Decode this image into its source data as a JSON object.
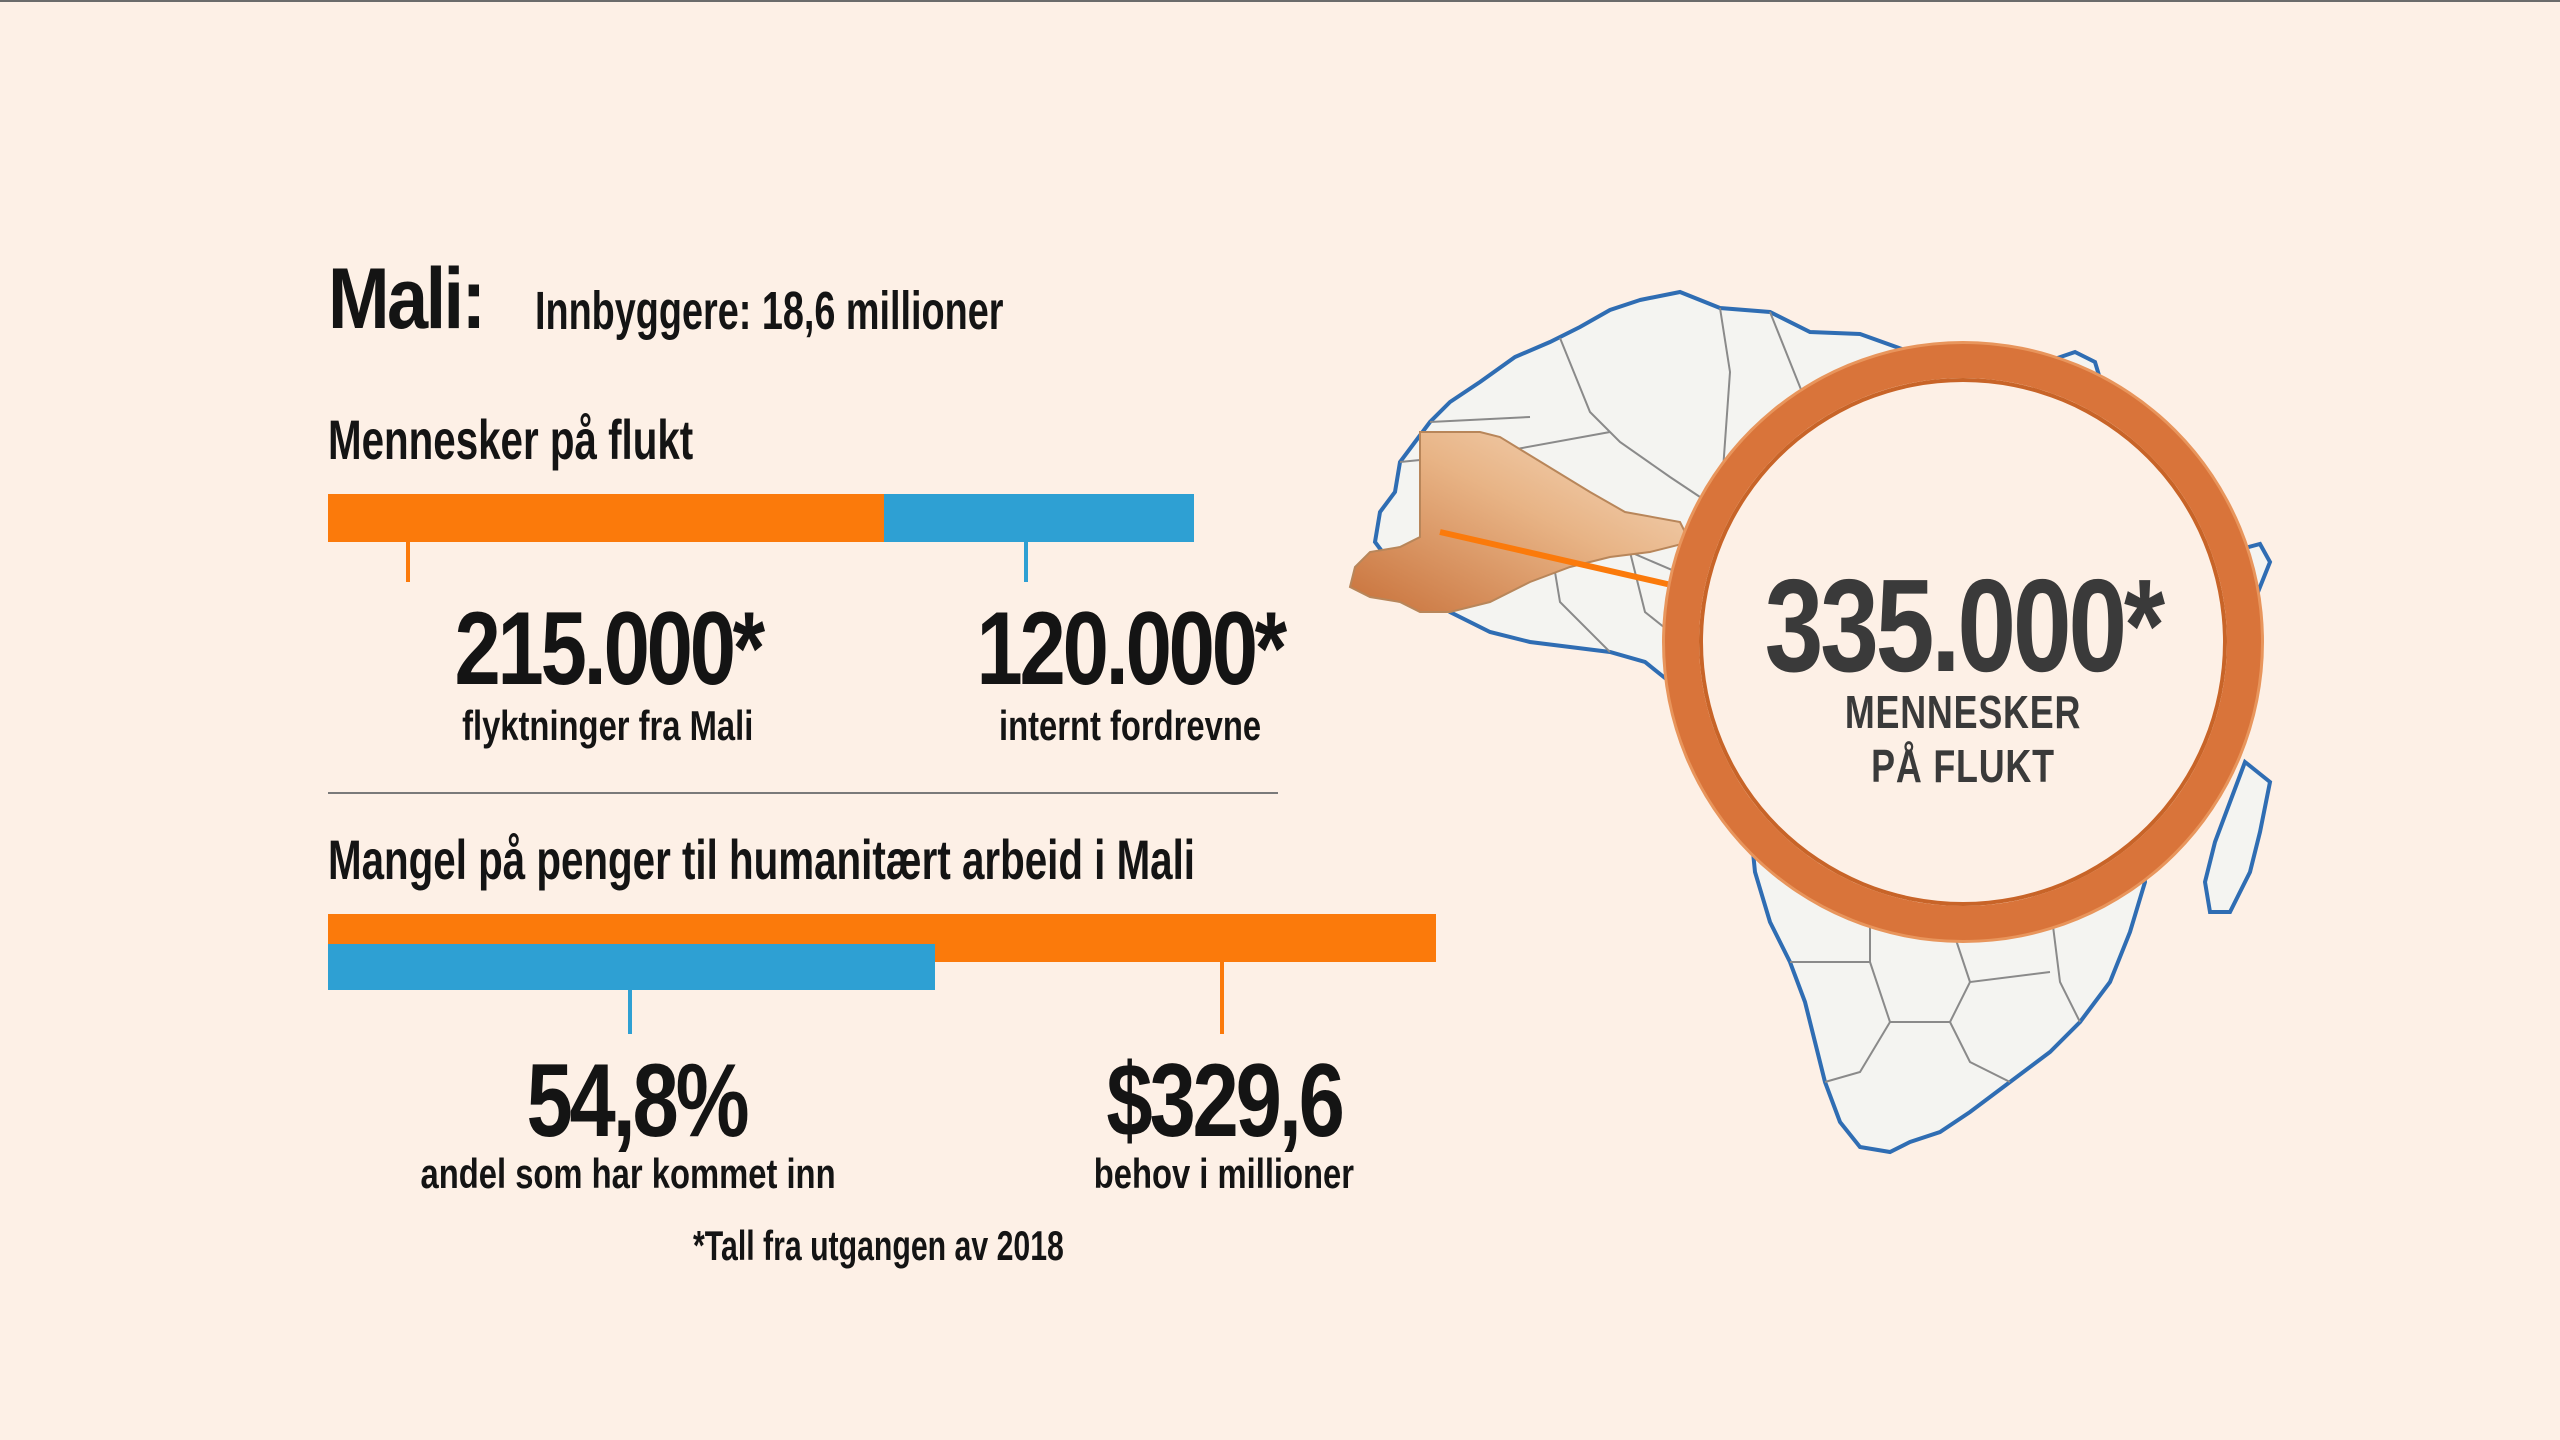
{
  "header": {
    "country": "Mali:",
    "population": "Innbyggere: 18,6 millioner"
  },
  "displacement": {
    "title": "Mennesker på flukt",
    "refugees_value": "215.000*",
    "refugees_label": "flyktninger fra Mali",
    "idp_value": "120.000*",
    "idp_label": "internt fordrevne",
    "refugees_count": 215000,
    "idp_count": 120000
  },
  "funding": {
    "title": "Mangel på penger til humanitært arbeid i Mali",
    "share_value": "54,8%",
    "share_label": "andel som har kommet inn",
    "need_value": "$329,6",
    "need_label": "behov i millioner",
    "share_fraction": 0.548
  },
  "total": {
    "value": "335.000*",
    "label_line1": "MENNESKER",
    "label_line2": "PÅ FLUKT"
  },
  "footnote": "*Tall fra utgangen av 2018",
  "colors": {
    "orange": "#fb7a0b",
    "blue": "#2ea0d3",
    "ring": "#d9743a",
    "background": "#fdf0e6"
  }
}
